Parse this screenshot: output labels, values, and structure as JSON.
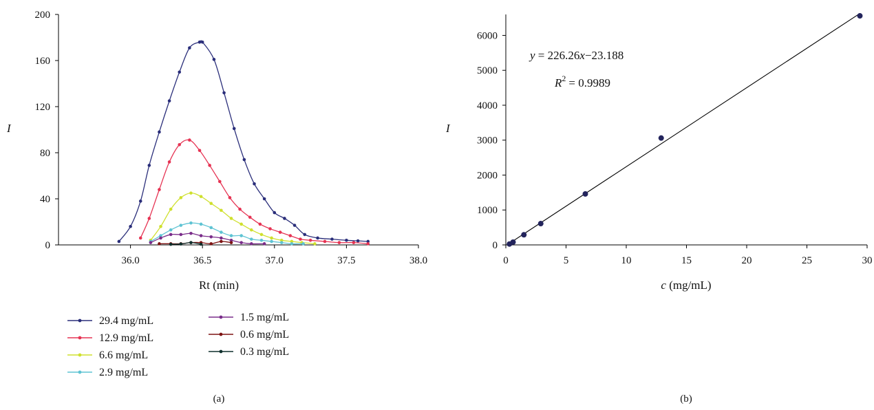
{
  "chart_data": [
    {
      "type": "line",
      "panel_label": "(a)",
      "xlabel": "Rt (min)",
      "ylabel": "I",
      "xlim": [
        35.5,
        38.0
      ],
      "ylim": [
        0,
        200
      ],
      "xticks": [
        "36.0",
        "36.5",
        "37.0",
        "37.5",
        "38.0"
      ],
      "yticks": [
        "0",
        "40",
        "80",
        "120",
        "160",
        "200"
      ],
      "grid": false,
      "legend_position": "bottom",
      "series": [
        {
          "name": "29.4 mg/mL",
          "color": "#2a2e7a",
          "x": [
            35.92,
            36.0,
            36.07,
            36.13,
            36.2,
            36.27,
            36.34,
            36.41,
            36.48,
            36.5,
            36.58,
            36.65,
            36.72,
            36.79,
            36.86,
            36.93,
            37.0,
            37.07,
            37.14,
            37.21,
            37.3,
            37.4,
            37.5,
            37.58,
            37.65
          ],
          "y": [
            3,
            16,
            38,
            69,
            98,
            125,
            150,
            171,
            176,
            176,
            161,
            132,
            101,
            74,
            53,
            40,
            28,
            23,
            17,
            9,
            6,
            5,
            4,
            3.5,
            3
          ]
        },
        {
          "name": "12.9 mg/mL",
          "color": "#e63353",
          "x": [
            36.07,
            36.13,
            36.2,
            36.27,
            36.34,
            36.41,
            36.48,
            36.55,
            36.62,
            36.69,
            36.76,
            36.83,
            36.9,
            36.97,
            37.04,
            37.11,
            37.18,
            37.25,
            37.35,
            37.45,
            37.55,
            37.65
          ],
          "y": [
            6,
            23,
            48,
            72,
            87,
            91,
            82,
            69,
            55,
            41,
            31,
            24,
            18,
            14,
            11,
            8,
            5,
            4,
            3,
            2,
            2,
            1
          ]
        },
        {
          "name": "6.6 mg/mL",
          "color": "#cfe02d",
          "x": [
            36.14,
            36.21,
            36.28,
            36.35,
            36.42,
            36.49,
            36.56,
            36.63,
            36.7,
            36.77,
            36.84,
            36.91,
            36.98,
            37.05,
            37.12,
            37.19,
            37.28
          ],
          "y": [
            4,
            16,
            31,
            41,
            45,
            42,
            36,
            30,
            23,
            18,
            13,
            9,
            6,
            4,
            3,
            2,
            1
          ]
        },
        {
          "name": "2.9 mg/mL",
          "color": "#5ec3d3",
          "x": [
            36.14,
            36.21,
            36.28,
            36.35,
            36.42,
            36.49,
            36.56,
            36.63,
            36.7,
            36.77,
            36.84,
            36.91,
            36.98,
            37.05,
            37.12,
            37.2
          ],
          "y": [
            3,
            8,
            13,
            17,
            19,
            18,
            15,
            11,
            8,
            8,
            5,
            4,
            3,
            2,
            1,
            1
          ]
        },
        {
          "name": "1.5 mg/mL",
          "color": "#7a2d8a",
          "x": [
            36.14,
            36.21,
            36.28,
            36.35,
            36.42,
            36.49,
            36.56,
            36.63,
            36.7,
            36.77,
            36.84,
            36.93
          ],
          "y": [
            2,
            6,
            9,
            9,
            10,
            8,
            7,
            6,
            4,
            2,
            1,
            1
          ]
        },
        {
          "name": "0.6 mg/mL",
          "color": "#7d1313",
          "x": [
            36.2,
            36.28,
            36.35,
            36.42,
            36.49,
            36.56,
            36.63,
            36.7
          ],
          "y": [
            1,
            1,
            1,
            2,
            2,
            1,
            3,
            2
          ]
        },
        {
          "name": "0.3 mg/mL",
          "color": "#0e2f2c",
          "x": [
            36.28,
            36.35,
            36.42,
            36.49
          ],
          "y": [
            0.5,
            0.8,
            2,
            0.6
          ]
        }
      ]
    },
    {
      "type": "scatter",
      "panel_label": "(b)",
      "xlabel": "(mg/mL)",
      "xlabel_var": "c",
      "ylabel": "I",
      "xlim": [
        0,
        30
      ],
      "ylim": [
        0,
        6600
      ],
      "xticks": [
        "0",
        "5",
        "10",
        "15",
        "20",
        "25",
        "30"
      ],
      "yticks": [
        "0",
        "1000",
        "2000",
        "3000",
        "4000",
        "5000",
        "6000"
      ],
      "grid": false,
      "marker_color": "#23245c",
      "points": {
        "x": [
          0.3,
          0.6,
          1.5,
          2.9,
          6.6,
          12.9,
          29.4
        ],
        "y": [
          25,
          80,
          290,
          610,
          1460,
          3060,
          6560
        ]
      },
      "fit": {
        "slope": 226.26,
        "intercept": -23.188
      },
      "equation": {
        "y_var": "y",
        "eq_sign": "=",
        "rhs_coef": "226.26",
        "x_var": "x",
        "rhs_const": "−23.188",
        "r2_var": "R",
        "r2_exp": "2",
        "r2_value": "= 0.9989"
      }
    }
  ]
}
